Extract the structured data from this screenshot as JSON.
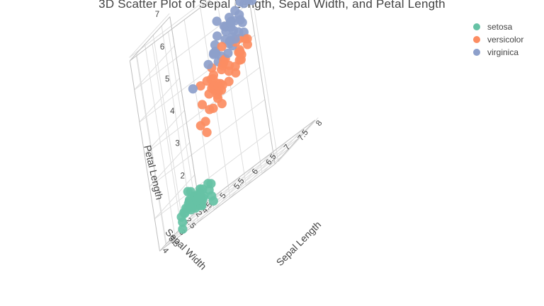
{
  "chart_data": {
    "type": "scatter",
    "title": "3D Scatter Plot of Sepal Length, Sepal Width, and Petal Length",
    "x_axis": {
      "label": "Sepal Length",
      "range": [
        4.3,
        7.9
      ],
      "ticks": [
        "4.5",
        "5",
        "5.5",
        "6",
        "6.5",
        "7",
        "7.5",
        "8"
      ]
    },
    "y_axis": {
      "label": "Sepal Width",
      "range": [
        2.0,
        4.4
      ],
      "ticks": [
        "2",
        "2.5",
        "3",
        "3.5",
        "4"
      ]
    },
    "z_axis": {
      "label": "Petal Length",
      "range": [
        1.0,
        6.9
      ],
      "ticks": [
        "2",
        "3",
        "4",
        "5",
        "6",
        "7"
      ]
    },
    "grid": true,
    "legend_position": "top-right",
    "series": [
      {
        "name": "setosa",
        "color": "#66c2a5",
        "points": [
          [
            5.1,
            3.5,
            1.4
          ],
          [
            4.9,
            3.0,
            1.4
          ],
          [
            4.7,
            3.2,
            1.3
          ],
          [
            4.6,
            3.1,
            1.5
          ],
          [
            5.0,
            3.6,
            1.4
          ],
          [
            5.4,
            3.9,
            1.7
          ],
          [
            4.6,
            3.4,
            1.4
          ],
          [
            5.0,
            3.4,
            1.5
          ],
          [
            4.4,
            2.9,
            1.4
          ],
          [
            4.9,
            3.1,
            1.5
          ],
          [
            5.4,
            3.7,
            1.5
          ],
          [
            4.8,
            3.4,
            1.6
          ],
          [
            4.8,
            3.0,
            1.4
          ],
          [
            4.3,
            3.0,
            1.1
          ],
          [
            5.8,
            4.0,
            1.2
          ],
          [
            5.7,
            4.4,
            1.5
          ],
          [
            5.4,
            3.9,
            1.3
          ],
          [
            5.1,
            3.5,
            1.4
          ],
          [
            5.7,
            3.8,
            1.7
          ],
          [
            5.1,
            3.8,
            1.5
          ],
          [
            5.4,
            3.4,
            1.7
          ],
          [
            5.1,
            3.7,
            1.5
          ],
          [
            4.6,
            3.6,
            1.0
          ],
          [
            5.1,
            3.3,
            1.7
          ],
          [
            4.8,
            3.4,
            1.9
          ],
          [
            5.0,
            3.0,
            1.6
          ],
          [
            5.0,
            3.4,
            1.6
          ],
          [
            5.2,
            3.5,
            1.5
          ],
          [
            5.2,
            3.4,
            1.4
          ],
          [
            4.7,
            3.2,
            1.6
          ],
          [
            4.8,
            3.1,
            1.6
          ],
          [
            5.4,
            3.4,
            1.5
          ],
          [
            5.2,
            4.1,
            1.5
          ],
          [
            5.5,
            4.2,
            1.4
          ],
          [
            4.9,
            3.1,
            1.5
          ],
          [
            5.0,
            3.2,
            1.2
          ],
          [
            5.5,
            3.5,
            1.3
          ],
          [
            4.4,
            3.0,
            1.3
          ],
          [
            5.1,
            3.4,
            1.5
          ],
          [
            5.0,
            3.5,
            1.3
          ],
          [
            4.5,
            2.3,
            1.3
          ],
          [
            4.4,
            3.2,
            1.3
          ],
          [
            5.0,
            3.5,
            1.6
          ],
          [
            5.1,
            3.8,
            1.9
          ],
          [
            4.8,
            3.0,
            1.4
          ],
          [
            5.1,
            3.8,
            1.6
          ],
          [
            4.6,
            3.2,
            1.4
          ],
          [
            5.3,
            3.7,
            1.5
          ],
          [
            5.0,
            3.3,
            1.4
          ]
        ]
      },
      {
        "name": "versicolor",
        "color": "#fc8d62",
        "points": [
          [
            7.0,
            3.2,
            4.7
          ],
          [
            6.4,
            3.2,
            4.5
          ],
          [
            6.9,
            3.1,
            4.9
          ],
          [
            5.5,
            2.3,
            4.0
          ],
          [
            6.5,
            2.8,
            4.6
          ],
          [
            5.7,
            2.8,
            4.5
          ],
          [
            6.3,
            3.3,
            4.7
          ],
          [
            4.9,
            2.4,
            3.3
          ],
          [
            6.6,
            2.9,
            4.6
          ],
          [
            5.2,
            2.7,
            3.9
          ],
          [
            5.0,
            2.0,
            3.5
          ],
          [
            5.9,
            3.0,
            4.2
          ],
          [
            6.0,
            2.2,
            4.0
          ],
          [
            6.1,
            2.9,
            4.7
          ],
          [
            5.6,
            2.9,
            3.6
          ],
          [
            6.7,
            3.1,
            4.4
          ],
          [
            5.6,
            3.0,
            4.5
          ],
          [
            5.8,
            2.7,
            4.1
          ],
          [
            6.2,
            2.2,
            4.5
          ],
          [
            5.6,
            2.5,
            3.9
          ],
          [
            5.9,
            3.2,
            4.8
          ],
          [
            6.1,
            2.8,
            4.0
          ],
          [
            6.3,
            2.5,
            4.9
          ],
          [
            6.1,
            2.8,
            4.7
          ],
          [
            6.4,
            2.9,
            4.3
          ],
          [
            6.6,
            3.0,
            4.4
          ],
          [
            6.8,
            2.8,
            4.8
          ],
          [
            6.7,
            3.0,
            5.0
          ],
          [
            6.0,
            2.9,
            4.5
          ],
          [
            5.7,
            2.6,
            3.5
          ],
          [
            5.5,
            2.4,
            3.8
          ],
          [
            5.5,
            2.4,
            3.7
          ],
          [
            5.8,
            2.7,
            3.9
          ],
          [
            6.0,
            2.7,
            5.1
          ],
          [
            5.4,
            3.0,
            4.5
          ],
          [
            6.0,
            3.4,
            4.5
          ],
          [
            6.7,
            3.1,
            4.7
          ],
          [
            6.3,
            2.3,
            4.4
          ],
          [
            5.6,
            3.0,
            4.1
          ],
          [
            5.5,
            2.5,
            4.0
          ],
          [
            5.5,
            2.6,
            4.4
          ],
          [
            6.1,
            3.0,
            4.6
          ],
          [
            5.8,
            2.6,
            4.0
          ],
          [
            5.0,
            2.3,
            3.3
          ],
          [
            5.6,
            2.7,
            4.2
          ],
          [
            5.7,
            3.0,
            4.2
          ],
          [
            5.7,
            2.9,
            4.2
          ],
          [
            6.2,
            2.9,
            4.3
          ],
          [
            5.1,
            2.5,
            3.0
          ],
          [
            5.7,
            2.8,
            4.1
          ]
        ]
      },
      {
        "name": "virginica",
        "color": "#8da0cb",
        "points": [
          [
            6.3,
            3.3,
            6.0
          ],
          [
            5.8,
            2.7,
            5.1
          ],
          [
            7.1,
            3.0,
            5.9
          ],
          [
            6.3,
            2.9,
            5.6
          ],
          [
            6.5,
            3.0,
            5.8
          ],
          [
            7.6,
            3.0,
            6.6
          ],
          [
            4.9,
            2.5,
            4.5
          ],
          [
            7.3,
            2.9,
            6.3
          ],
          [
            6.7,
            2.5,
            5.8
          ],
          [
            7.2,
            3.6,
            6.1
          ],
          [
            6.5,
            3.2,
            5.1
          ],
          [
            6.4,
            2.7,
            5.3
          ],
          [
            6.8,
            3.0,
            5.5
          ],
          [
            5.7,
            2.5,
            5.0
          ],
          [
            5.8,
            2.8,
            5.1
          ],
          [
            6.4,
            3.2,
            5.3
          ],
          [
            6.5,
            3.0,
            5.5
          ],
          [
            7.7,
            3.8,
            6.7
          ],
          [
            7.7,
            2.6,
            6.9
          ],
          [
            6.0,
            2.2,
            5.0
          ],
          [
            6.9,
            3.2,
            5.7
          ],
          [
            5.6,
            2.8,
            4.9
          ],
          [
            7.7,
            2.8,
            6.7
          ],
          [
            6.3,
            2.7,
            4.9
          ],
          [
            6.7,
            3.3,
            5.7
          ],
          [
            7.2,
            3.2,
            6.0
          ],
          [
            6.2,
            2.8,
            4.8
          ],
          [
            6.1,
            3.0,
            4.9
          ],
          [
            6.4,
            2.8,
            5.6
          ],
          [
            7.2,
            3.0,
            5.8
          ],
          [
            7.4,
            2.8,
            6.1
          ],
          [
            7.9,
            3.8,
            6.4
          ],
          [
            6.4,
            2.8,
            5.6
          ],
          [
            6.3,
            2.8,
            5.1
          ],
          [
            6.1,
            2.6,
            5.6
          ],
          [
            7.7,
            3.0,
            6.1
          ],
          [
            6.3,
            3.4,
            5.6
          ],
          [
            6.4,
            3.1,
            5.5
          ],
          [
            6.0,
            3.0,
            4.8
          ],
          [
            6.9,
            3.1,
            5.4
          ],
          [
            6.7,
            3.1,
            5.6
          ],
          [
            6.9,
            3.1,
            5.1
          ],
          [
            6.8,
            3.2,
            5.9
          ],
          [
            6.7,
            3.3,
            5.7
          ],
          [
            6.7,
            3.0,
            5.2
          ],
          [
            6.3,
            2.5,
            5.0
          ],
          [
            6.5,
            3.0,
            5.2
          ],
          [
            6.2,
            3.4,
            5.4
          ],
          [
            5.9,
            3.0,
            5.1
          ]
        ]
      }
    ]
  }
}
